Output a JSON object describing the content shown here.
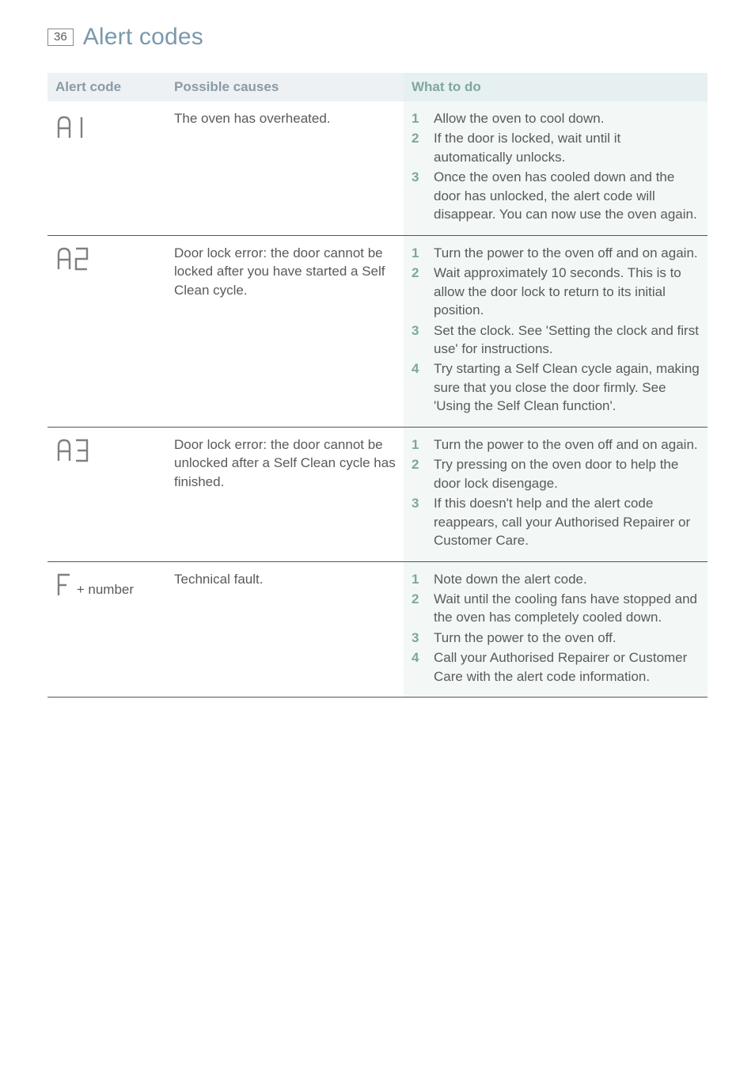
{
  "page": {
    "number": "36",
    "title": "Alert codes"
  },
  "table": {
    "headers": {
      "code": "Alert code",
      "cause": "Possible causes",
      "action": "What to do"
    },
    "rows": [
      {
        "code_display": "A1",
        "code_suffix": "",
        "cause": "The oven has overheated.",
        "steps": [
          "Allow the oven to cool down.",
          "If the door is locked, wait until it automatically unlocks.",
          "Once the oven has cooled down and the door has unlocked, the alert code will disappear. You can now use the oven again."
        ]
      },
      {
        "code_display": "A2",
        "code_suffix": "",
        "cause": "Door lock error: the door cannot be locked after you have started a Self Clean cycle.",
        "steps": [
          "Turn the power to the oven off and on again.",
          "Wait approximately 10 seconds. This is to allow the door lock to return to its initial position.",
          "Set the clock. See 'Setting the clock and first use' for instructions.",
          "Try starting a Self Clean cycle again, making sure that you close the door firmly. See 'Using the Self Clean function'."
        ]
      },
      {
        "code_display": "A3",
        "code_suffix": "",
        "cause": "Door lock error: the door cannot be unlocked after a Self Clean cycle has finished.",
        "steps": [
          "Turn the power to the oven off and on again.",
          "Try pressing on the oven door to help the door lock disengage.",
          "If this doesn't help and the alert code reappears, call your Authorised Repairer or Customer Care."
        ]
      },
      {
        "code_display": "F",
        "code_suffix": " + number",
        "cause": "Technical fault.",
        "steps": [
          "Note down the alert code.",
          "Wait until the cooling fans have stopped and the oven has completely cooled down.",
          "Turn the power to the oven off.",
          "Call your Authorised Repairer or Customer Care with the alert code information."
        ]
      }
    ]
  },
  "colors": {
    "accent_teal": "#7fa69e",
    "accent_blue": "#7a99ac",
    "grey_text": "#5a5a5a",
    "header_bg_grey": "#eef1f3",
    "header_bg_teal": "#e6f0f0",
    "action_bg": "#f3f8f7"
  }
}
